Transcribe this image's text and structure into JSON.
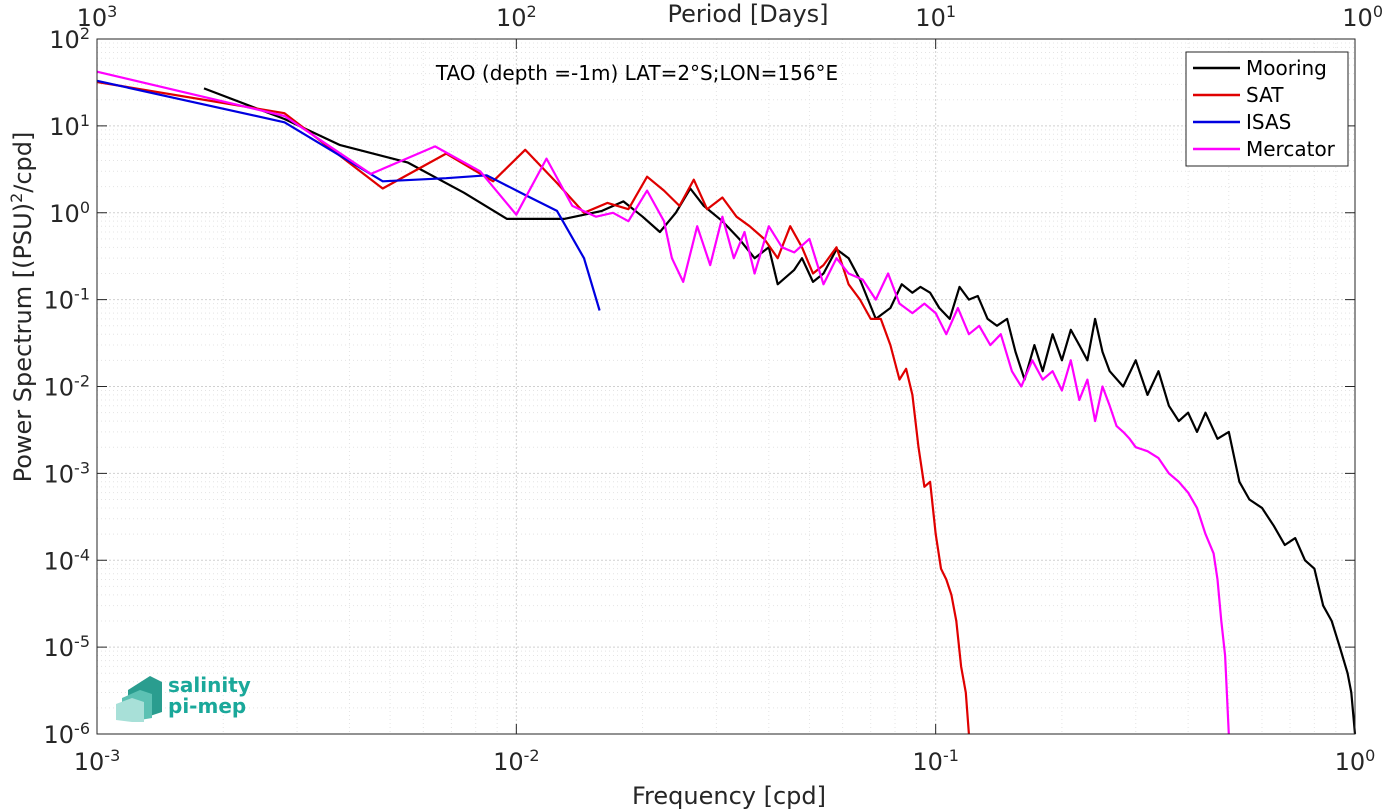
{
  "chart_data": {
    "type": "line",
    "title": "TAO (depth =-1m) LAT=2°S;LON=156°E",
    "xlabel": "Frequency [cpd]",
    "ylabel": "Power Spectrum [(PSU)^2/cpd]",
    "x2label": "Period [Days]",
    "xscale": "log",
    "yscale": "log",
    "xlim": [
      0.001,
      1
    ],
    "ylim": [
      1e-06,
      100
    ],
    "grid": true,
    "legend_position": "top-right",
    "x_ticks": [
      {
        "value": 0.001,
        "base": "10",
        "exp": "-3"
      },
      {
        "value": 0.01,
        "base": "10",
        "exp": "-2"
      },
      {
        "value": 0.1,
        "base": "10",
        "exp": "-1"
      },
      {
        "value": 1,
        "base": "10",
        "exp": "0"
      }
    ],
    "x2_ticks": [
      {
        "value": 0.001,
        "base": "10",
        "exp": "3"
      },
      {
        "value": 0.01,
        "base": "10",
        "exp": "2"
      },
      {
        "value": 0.1,
        "base": "10",
        "exp": "1"
      },
      {
        "value": 1,
        "base": "10",
        "exp": "0"
      }
    ],
    "y_ticks": [
      {
        "value": 100,
        "base": "10",
        "exp": "2"
      },
      {
        "value": 10,
        "base": "10",
        "exp": "1"
      },
      {
        "value": 1,
        "base": "10",
        "exp": "0"
      },
      {
        "value": 0.1,
        "base": "10",
        "exp": "-1"
      },
      {
        "value": 0.01,
        "base": "10",
        "exp": "-2"
      },
      {
        "value": 0.001,
        "base": "10",
        "exp": "-3"
      },
      {
        "value": 0.0001,
        "base": "10",
        "exp": "-4"
      },
      {
        "value": 1e-05,
        "base": "10",
        "exp": "-5"
      },
      {
        "value": 1e-06,
        "base": "10",
        "exp": "-6"
      }
    ],
    "series": [
      {
        "name": "Mooring",
        "color": "#000000",
        "points": [
          [
            0.0018,
            27
          ],
          [
            0.0028,
            12
          ],
          [
            0.0038,
            6
          ],
          [
            0.0055,
            3.8
          ],
          [
            0.0075,
            1.7
          ],
          [
            0.0095,
            0.85
          ],
          [
            0.013,
            0.85
          ],
          [
            0.016,
            1.05
          ],
          [
            0.018,
            1.35
          ],
          [
            0.02,
            0.9
          ],
          [
            0.022,
            0.6
          ],
          [
            0.024,
            1.0
          ],
          [
            0.026,
            1.9
          ],
          [
            0.028,
            1.2
          ],
          [
            0.031,
            0.8
          ],
          [
            0.034,
            0.5
          ],
          [
            0.037,
            0.3
          ],
          [
            0.04,
            0.4
          ],
          [
            0.042,
            0.15
          ],
          [
            0.046,
            0.22
          ],
          [
            0.048,
            0.3
          ],
          [
            0.051,
            0.16
          ],
          [
            0.054,
            0.2
          ],
          [
            0.058,
            0.38
          ],
          [
            0.062,
            0.3
          ],
          [
            0.066,
            0.17
          ],
          [
            0.072,
            0.06
          ],
          [
            0.078,
            0.08
          ],
          [
            0.083,
            0.15
          ],
          [
            0.088,
            0.12
          ],
          [
            0.092,
            0.14
          ],
          [
            0.097,
            0.12
          ],
          [
            0.102,
            0.08
          ],
          [
            0.108,
            0.06
          ],
          [
            0.114,
            0.14
          ],
          [
            0.12,
            0.1
          ],
          [
            0.126,
            0.11
          ],
          [
            0.133,
            0.06
          ],
          [
            0.14,
            0.05
          ],
          [
            0.148,
            0.06
          ],
          [
            0.155,
            0.025
          ],
          [
            0.163,
            0.012
          ],
          [
            0.172,
            0.03
          ],
          [
            0.18,
            0.015
          ],
          [
            0.19,
            0.04
          ],
          [
            0.2,
            0.02
          ],
          [
            0.21,
            0.045
          ],
          [
            0.22,
            0.03
          ],
          [
            0.23,
            0.02
          ],
          [
            0.24,
            0.06
          ],
          [
            0.25,
            0.025
          ],
          [
            0.26,
            0.015
          ],
          [
            0.28,
            0.01
          ],
          [
            0.3,
            0.02
          ],
          [
            0.32,
            0.008
          ],
          [
            0.34,
            0.015
          ],
          [
            0.36,
            0.006
          ],
          [
            0.38,
            0.004
          ],
          [
            0.4,
            0.005
          ],
          [
            0.42,
            0.003
          ],
          [
            0.44,
            0.005
          ],
          [
            0.47,
            0.0025
          ],
          [
            0.5,
            0.003
          ],
          [
            0.53,
            0.0008
          ],
          [
            0.56,
            0.0005
          ],
          [
            0.6,
            0.0004
          ],
          [
            0.64,
            0.00025
          ],
          [
            0.68,
            0.00015
          ],
          [
            0.72,
            0.00018
          ],
          [
            0.76,
            0.0001
          ],
          [
            0.8,
            8e-05
          ],
          [
            0.84,
            3e-05
          ],
          [
            0.88,
            2e-05
          ],
          [
            0.92,
            1e-05
          ],
          [
            0.96,
            5e-06
          ],
          [
            0.98,
            3e-06
          ],
          [
            1.0,
            1e-06
          ]
        ]
      },
      {
        "name": "SAT",
        "color": "#e00000",
        "points": [
          [
            0.001,
            32
          ],
          [
            0.0028,
            14
          ],
          [
            0.0048,
            1.9
          ],
          [
            0.0068,
            4.8
          ],
          [
            0.0088,
            2.3
          ],
          [
            0.0105,
            5.3
          ],
          [
            0.0125,
            2.2
          ],
          [
            0.0145,
            1.0
          ],
          [
            0.0165,
            1.3
          ],
          [
            0.0185,
            1.1
          ],
          [
            0.0205,
            2.6
          ],
          [
            0.0225,
            1.8
          ],
          [
            0.0245,
            1.2
          ],
          [
            0.0265,
            2.4
          ],
          [
            0.0285,
            1.1
          ],
          [
            0.031,
            1.5
          ],
          [
            0.0335,
            0.9
          ],
          [
            0.036,
            0.7
          ],
          [
            0.039,
            0.5
          ],
          [
            0.042,
            0.3
          ],
          [
            0.045,
            0.7
          ],
          [
            0.048,
            0.4
          ],
          [
            0.051,
            0.2
          ],
          [
            0.054,
            0.25
          ],
          [
            0.058,
            0.4
          ],
          [
            0.062,
            0.15
          ],
          [
            0.066,
            0.1
          ],
          [
            0.07,
            0.06
          ],
          [
            0.074,
            0.06
          ],
          [
            0.078,
            0.03
          ],
          [
            0.082,
            0.012
          ],
          [
            0.085,
            0.016
          ],
          [
            0.088,
            0.008
          ],
          [
            0.091,
            0.002
          ],
          [
            0.094,
            0.0007
          ],
          [
            0.097,
            0.0008
          ],
          [
            0.1,
            0.0002
          ],
          [
            0.103,
            8e-05
          ],
          [
            0.106,
            6e-05
          ],
          [
            0.109,
            4e-05
          ],
          [
            0.112,
            2e-05
          ],
          [
            0.115,
            6e-06
          ],
          [
            0.118,
            3e-06
          ],
          [
            0.12,
            1e-06
          ]
        ]
      },
      {
        "name": "ISAS",
        "color": "#0000e0",
        "points": [
          [
            0.001,
            33
          ],
          [
            0.0028,
            11
          ],
          [
            0.0048,
            2.3
          ],
          [
            0.0068,
            2.5
          ],
          [
            0.0085,
            2.7
          ],
          [
            0.0105,
            1.6
          ],
          [
            0.0125,
            1.05
          ],
          [
            0.0145,
            0.3
          ],
          [
            0.0158,
            0.075
          ]
        ]
      },
      {
        "name": "Mercator",
        "color": "#ff00ff",
        "points": [
          [
            0.001,
            42
          ],
          [
            0.0028,
            13
          ],
          [
            0.0045,
            2.8
          ],
          [
            0.0064,
            5.8
          ],
          [
            0.0082,
            3.0
          ],
          [
            0.01,
            0.95
          ],
          [
            0.0118,
            4.2
          ],
          [
            0.0136,
            1.2
          ],
          [
            0.0155,
            0.9
          ],
          [
            0.017,
            1.0
          ],
          [
            0.0185,
            0.8
          ],
          [
            0.0205,
            1.8
          ],
          [
            0.0225,
            0.8
          ],
          [
            0.0235,
            0.3
          ],
          [
            0.025,
            0.16
          ],
          [
            0.027,
            0.7
          ],
          [
            0.029,
            0.25
          ],
          [
            0.031,
            0.9
          ],
          [
            0.033,
            0.3
          ],
          [
            0.035,
            0.6
          ],
          [
            0.037,
            0.2
          ],
          [
            0.04,
            0.7
          ],
          [
            0.043,
            0.4
          ],
          [
            0.046,
            0.35
          ],
          [
            0.05,
            0.5
          ],
          [
            0.054,
            0.15
          ],
          [
            0.058,
            0.3
          ],
          [
            0.062,
            0.2
          ],
          [
            0.067,
            0.17
          ],
          [
            0.072,
            0.1
          ],
          [
            0.077,
            0.2
          ],
          [
            0.082,
            0.09
          ],
          [
            0.088,
            0.07
          ],
          [
            0.094,
            0.09
          ],
          [
            0.1,
            0.07
          ],
          [
            0.106,
            0.04
          ],
          [
            0.113,
            0.08
          ],
          [
            0.12,
            0.04
          ],
          [
            0.127,
            0.05
          ],
          [
            0.135,
            0.03
          ],
          [
            0.143,
            0.04
          ],
          [
            0.152,
            0.015
          ],
          [
            0.16,
            0.01
          ],
          [
            0.17,
            0.02
          ],
          [
            0.18,
            0.012
          ],
          [
            0.19,
            0.015
          ],
          [
            0.2,
            0.009
          ],
          [
            0.21,
            0.02
          ],
          [
            0.22,
            0.007
          ],
          [
            0.23,
            0.012
          ],
          [
            0.24,
            0.004
          ],
          [
            0.25,
            0.01
          ],
          [
            0.26,
            0.006
          ],
          [
            0.27,
            0.0035
          ],
          [
            0.28,
            0.003
          ],
          [
            0.29,
            0.0025
          ],
          [
            0.3,
            0.002
          ],
          [
            0.32,
            0.0018
          ],
          [
            0.34,
            0.0015
          ],
          [
            0.36,
            0.001
          ],
          [
            0.38,
            0.0008
          ],
          [
            0.4,
            0.0006
          ],
          [
            0.42,
            0.0004
          ],
          [
            0.44,
            0.0002
          ],
          [
            0.46,
            0.00012
          ],
          [
            0.47,
            6e-05
          ],
          [
            0.48,
            2e-05
          ],
          [
            0.49,
            8e-06
          ],
          [
            0.5,
            1e-06
          ]
        ]
      }
    ]
  },
  "logo": {
    "line1": "salinity",
    "line2": "pi-mep",
    "color": "#1aa89a"
  }
}
